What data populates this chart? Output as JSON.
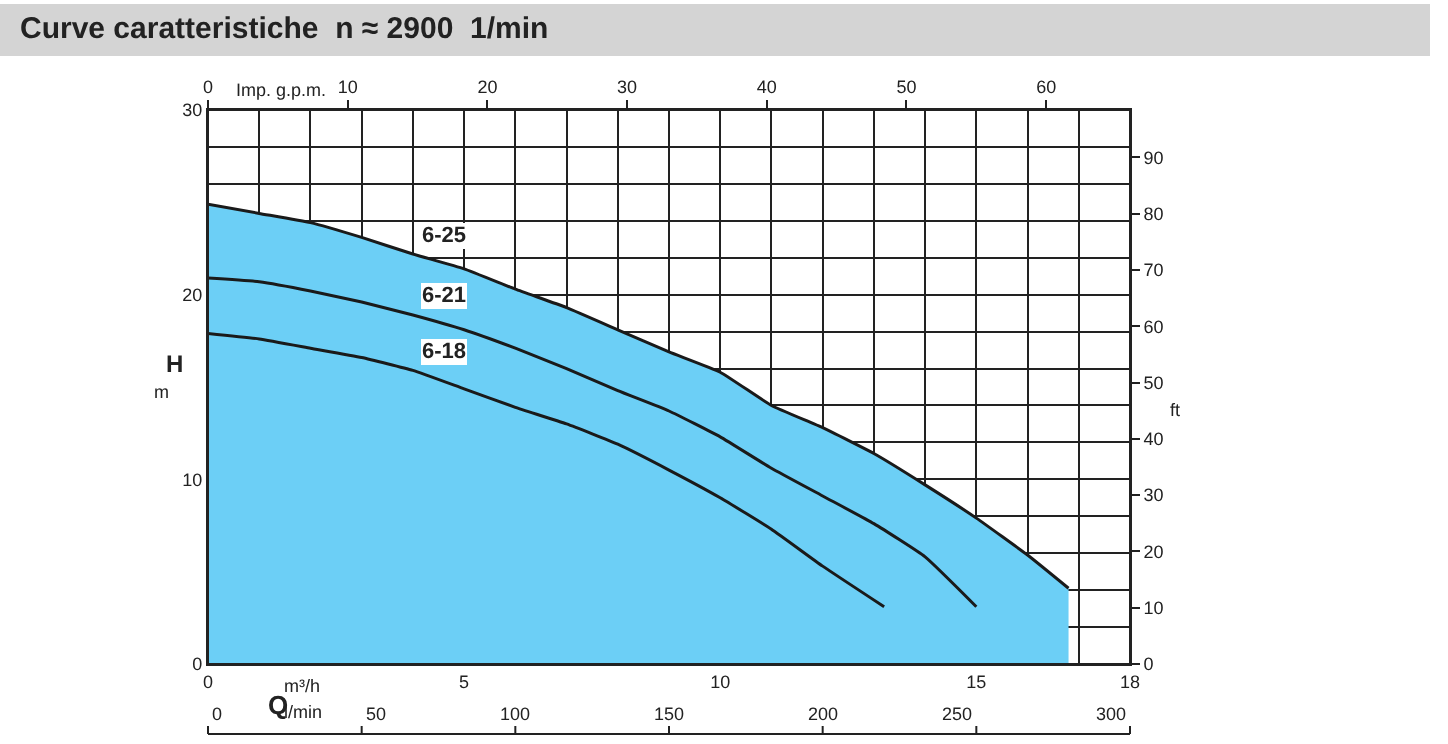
{
  "chart_data": {
    "type": "line",
    "title": "Curve caratteristiche  n ≈ 2900  1/min",
    "xlabel": "Q",
    "ylabel": "H",
    "y2label": "ft",
    "x2label": "Imp. g.p.m.",
    "annotations": [
      "m³/h",
      "l/min",
      "m",
      "0",
      "50",
      "100",
      "150",
      "200",
      "250",
      "300"
    ],
    "series": [
      {
        "name": "6-25",
        "type": "area",
        "color": "#6ccff6",
        "x": [
          0,
          1,
          2,
          3,
          4,
          5,
          6,
          7,
          8,
          9,
          10,
          11,
          12,
          13,
          14,
          15,
          16,
          16.8
        ],
        "values": [
          24.9,
          24.4,
          23.9,
          23.1,
          22.2,
          21.4,
          20.3,
          19.3,
          18.1,
          16.9,
          15.8,
          14.0,
          12.8,
          11.4,
          9.7,
          7.9,
          5.9,
          4.1
        ]
      },
      {
        "name": "6-21",
        "color": "#1a1a1a",
        "x": [
          0,
          1,
          2,
          3,
          4,
          5,
          6,
          7,
          8,
          9,
          10,
          11,
          12,
          13,
          14,
          15
        ],
        "values": [
          20.9,
          20.7,
          20.2,
          19.6,
          18.9,
          18.1,
          17.1,
          16.0,
          14.8,
          13.7,
          12.3,
          10.6,
          9.1,
          7.6,
          5.8,
          3.1
        ]
      },
      {
        "name": "6-18",
        "color": "#1a1a1a",
        "x": [
          0,
          1,
          2,
          3,
          4,
          5,
          6,
          7,
          8,
          9,
          10,
          11,
          12,
          13.2
        ],
        "values": [
          17.9,
          17.6,
          17.1,
          16.6,
          15.9,
          14.9,
          13.9,
          13.0,
          11.9,
          10.5,
          9.0,
          7.3,
          5.3,
          3.1
        ]
      }
    ],
    "xlim": [
      0,
      18
    ],
    "ylim": [
      0,
      30
    ],
    "xticks": [
      0,
      {
        "value": 1,
        "label": null
      },
      {
        "value": 2,
        "label": null
      },
      {
        "value": 3,
        "label": null
      },
      {
        "value": 4,
        "label": null
      },
      5,
      {
        "value": 6,
        "label": null
      },
      {
        "value": 7,
        "label": null
      },
      {
        "value": 8,
        "label": null
      },
      {
        "value": 9,
        "label": null
      },
      10,
      {
        "value": 11,
        "label": null
      },
      {
        "value": 12,
        "label": null
      },
      {
        "value": 13,
        "label": null
      },
      {
        "value": 14,
        "label": null
      },
      15,
      {
        "value": 16,
        "label": null
      },
      {
        "value": 17,
        "label": null
      },
      18
    ],
    "yticks": [
      0,
      {
        "value": 2,
        "label": null
      },
      {
        "value": 4,
        "label": null
      },
      {
        "value": 6,
        "label": null
      },
      {
        "value": 8,
        "label": null
      },
      10,
      {
        "value": 12,
        "label": null
      },
      {
        "value": 14,
        "label": null
      },
      {
        "value": 16,
        "label": null
      },
      {
        "value": 18,
        "label": null
      },
      20,
      {
        "value": 22,
        "label": null
      },
      {
        "value": 24,
        "label": null
      },
      {
        "value": 26,
        "label": null
      },
      {
        "value": 28,
        "label": null
      },
      30
    ],
    "x2lim": [
      0,
      66
    ],
    "x2ticks": [
      0,
      10,
      20,
      30,
      40,
      50,
      60
    ],
    "y2lim": [
      0,
      98.4
    ],
    "y2ticks": [
      0,
      10,
      20,
      30,
      40,
      50,
      60,
      70,
      80,
      90
    ],
    "grid": true,
    "legend": false,
    "marker": "none",
    "line_style": "solid"
  }
}
